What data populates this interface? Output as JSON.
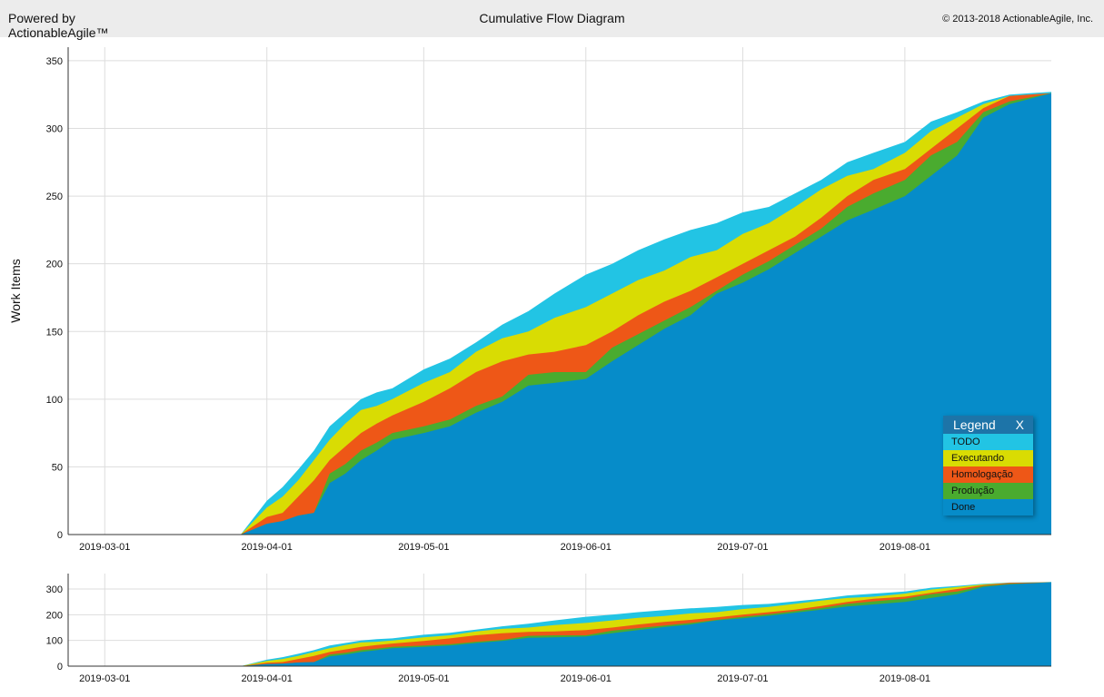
{
  "header": {
    "powered_line1": "Powered by",
    "powered_line2": "ActionableAgile™",
    "title": "Cumulative Flow Diagram",
    "copyright": "© 2013-2018 ActionableAgile, Inc."
  },
  "legend": {
    "title": "Legend",
    "close": "X"
  },
  "chart_data": {
    "type": "area",
    "stacked": true,
    "title": "Cumulative Flow Diagram",
    "xlabel": "",
    "ylabel": "Work Items",
    "xlim": [
      "2019-02-22",
      "2019-08-29"
    ],
    "ylim": [
      0,
      360
    ],
    "yticks": [
      0,
      50,
      100,
      150,
      200,
      250,
      300,
      350
    ],
    "xticks": [
      "2019-03-01",
      "2019-04-01",
      "2019-05-01",
      "2019-06-01",
      "2019-07-01",
      "2019-08-01"
    ],
    "grid": true,
    "legend_position": "bottom-right",
    "navigator": {
      "ylim": [
        0,
        360
      ],
      "yticks": [
        0,
        100,
        200,
        300
      ]
    },
    "dates": [
      "2019-02-22",
      "2019-03-27",
      "2019-04-01",
      "2019-04-04",
      "2019-04-07",
      "2019-04-10",
      "2019-04-13",
      "2019-04-16",
      "2019-04-19",
      "2019-04-22",
      "2019-04-25",
      "2019-05-01",
      "2019-05-06",
      "2019-05-11",
      "2019-05-16",
      "2019-05-21",
      "2019-05-26",
      "2019-06-01",
      "2019-06-06",
      "2019-06-11",
      "2019-06-16",
      "2019-06-21",
      "2019-06-26",
      "2019-07-01",
      "2019-07-06",
      "2019-07-11",
      "2019-07-16",
      "2019-07-21",
      "2019-07-26",
      "2019-08-01",
      "2019-08-06",
      "2019-08-11",
      "2019-08-16",
      "2019-08-21",
      "2019-08-29"
    ],
    "series": [
      {
        "name": "Done",
        "color": "#068cc9",
        "values": [
          0,
          0,
          8,
          10,
          14,
          16,
          38,
          45,
          55,
          62,
          70,
          75,
          80,
          90,
          98,
          110,
          112,
          115,
          128,
          140,
          152,
          162,
          178,
          186,
          196,
          208,
          220,
          232,
          240,
          250,
          265,
          280,
          308,
          318,
          326
        ]
      },
      {
        "name": "Produção",
        "color": "#4aab2f",
        "values": [
          0,
          0,
          8,
          10,
          14,
          16,
          45,
          52,
          62,
          68,
          75,
          80,
          85,
          95,
          102,
          118,
          120,
          120,
          138,
          148,
          158,
          168,
          180,
          192,
          202,
          214,
          226,
          242,
          252,
          262,
          280,
          290,
          312,
          320,
          326
        ]
      },
      {
        "name": "Homologação",
        "color": "#ee5717",
        "values": [
          0,
          0,
          13,
          16,
          28,
          40,
          55,
          65,
          75,
          82,
          88,
          98,
          108,
          120,
          128,
          133,
          135,
          140,
          150,
          162,
          172,
          180,
          190,
          200,
          210,
          220,
          234,
          250,
          262,
          270,
          285,
          300,
          315,
          324,
          326
        ]
      },
      {
        "name": "Executando",
        "color": "#d9dc03",
        "values": [
          0,
          0,
          20,
          28,
          40,
          55,
          70,
          82,
          92,
          95,
          100,
          112,
          120,
          135,
          145,
          150,
          160,
          168,
          178,
          188,
          195,
          205,
          210,
          222,
          230,
          242,
          255,
          265,
          270,
          282,
          298,
          308,
          318,
          324,
          326
        ]
      },
      {
        "name": "TODO",
        "color": "#22c4e4",
        "values": [
          0,
          0,
          25,
          35,
          48,
          62,
          80,
          90,
          100,
          105,
          108,
          122,
          130,
          142,
          155,
          165,
          178,
          192,
          200,
          210,
          218,
          225,
          230,
          238,
          242,
          252,
          262,
          275,
          282,
          290,
          305,
          312,
          320,
          325,
          327
        ]
      }
    ]
  }
}
